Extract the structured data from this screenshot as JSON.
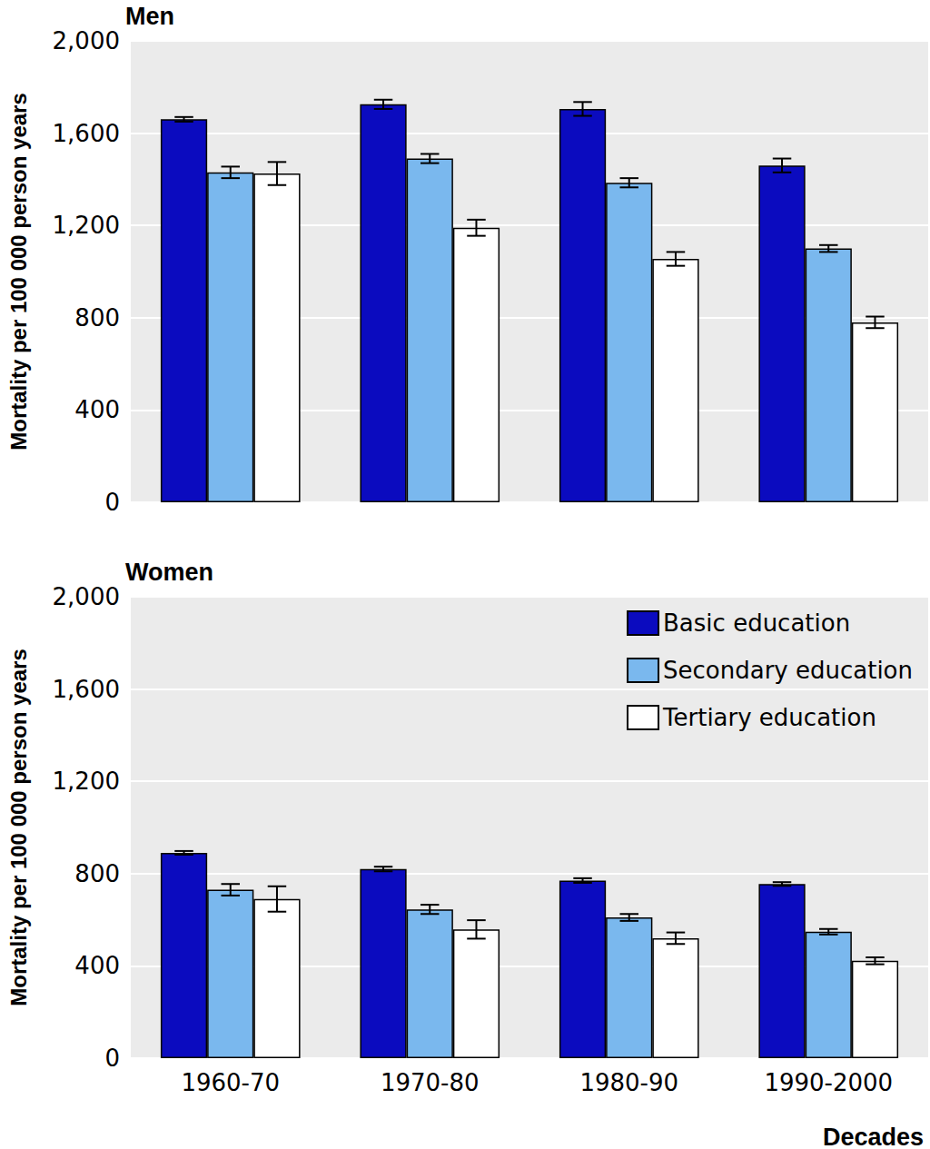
{
  "chart_data": [
    {
      "type": "bar",
      "title": "Men",
      "y_label": "Mortality per 100 000 person years",
      "categories": [
        "1960-70",
        "1970-80",
        "1980-90",
        "1990-2000"
      ],
      "series": [
        {
          "name": "Basic education",
          "color": "#0b0bbf",
          "values": [
            1660,
            1725,
            1705,
            1460
          ],
          "errors": [
            10,
            20,
            30,
            30
          ]
        },
        {
          "name": "Secondary education",
          "color": "#7ab8ee",
          "values": [
            1430,
            1490,
            1385,
            1100
          ],
          "errors": [
            25,
            20,
            20,
            15
          ]
        },
        {
          "name": "Tertiary education",
          "color": "#ffffff",
          "values": [
            1425,
            1190,
            1055,
            780
          ],
          "errors": [
            50,
            35,
            30,
            25
          ]
        }
      ],
      "ylim": [
        0,
        2000
      ],
      "yticks": [
        0,
        400,
        800,
        1200,
        1600,
        2000
      ],
      "grid": true,
      "tick_labels": "y"
    },
    {
      "type": "bar",
      "title": "Women",
      "y_label": "Mortality per 100 000 person years",
      "x_label": "Decades",
      "categories": [
        "1960-70",
        "1970-80",
        "1980-90",
        "1990-2000"
      ],
      "series": [
        {
          "name": "Basic education",
          "color": "#0b0bbf",
          "values": [
            890,
            820,
            770,
            755
          ],
          "errors": [
            8,
            10,
            10,
            8
          ]
        },
        {
          "name": "Secondary education",
          "color": "#7ab8ee",
          "values": [
            730,
            645,
            610,
            548
          ],
          "errors": [
            25,
            20,
            15,
            12
          ]
        },
        {
          "name": "Tertiary education",
          "color": "#ffffff",
          "values": [
            690,
            558,
            520,
            422
          ],
          "errors": [
            55,
            40,
            25,
            15
          ]
        }
      ],
      "ylim": [
        0,
        2000
      ],
      "yticks": [
        0,
        400,
        800,
        1200,
        1600,
        2000
      ],
      "grid": true,
      "legend": "upper right"
    }
  ]
}
